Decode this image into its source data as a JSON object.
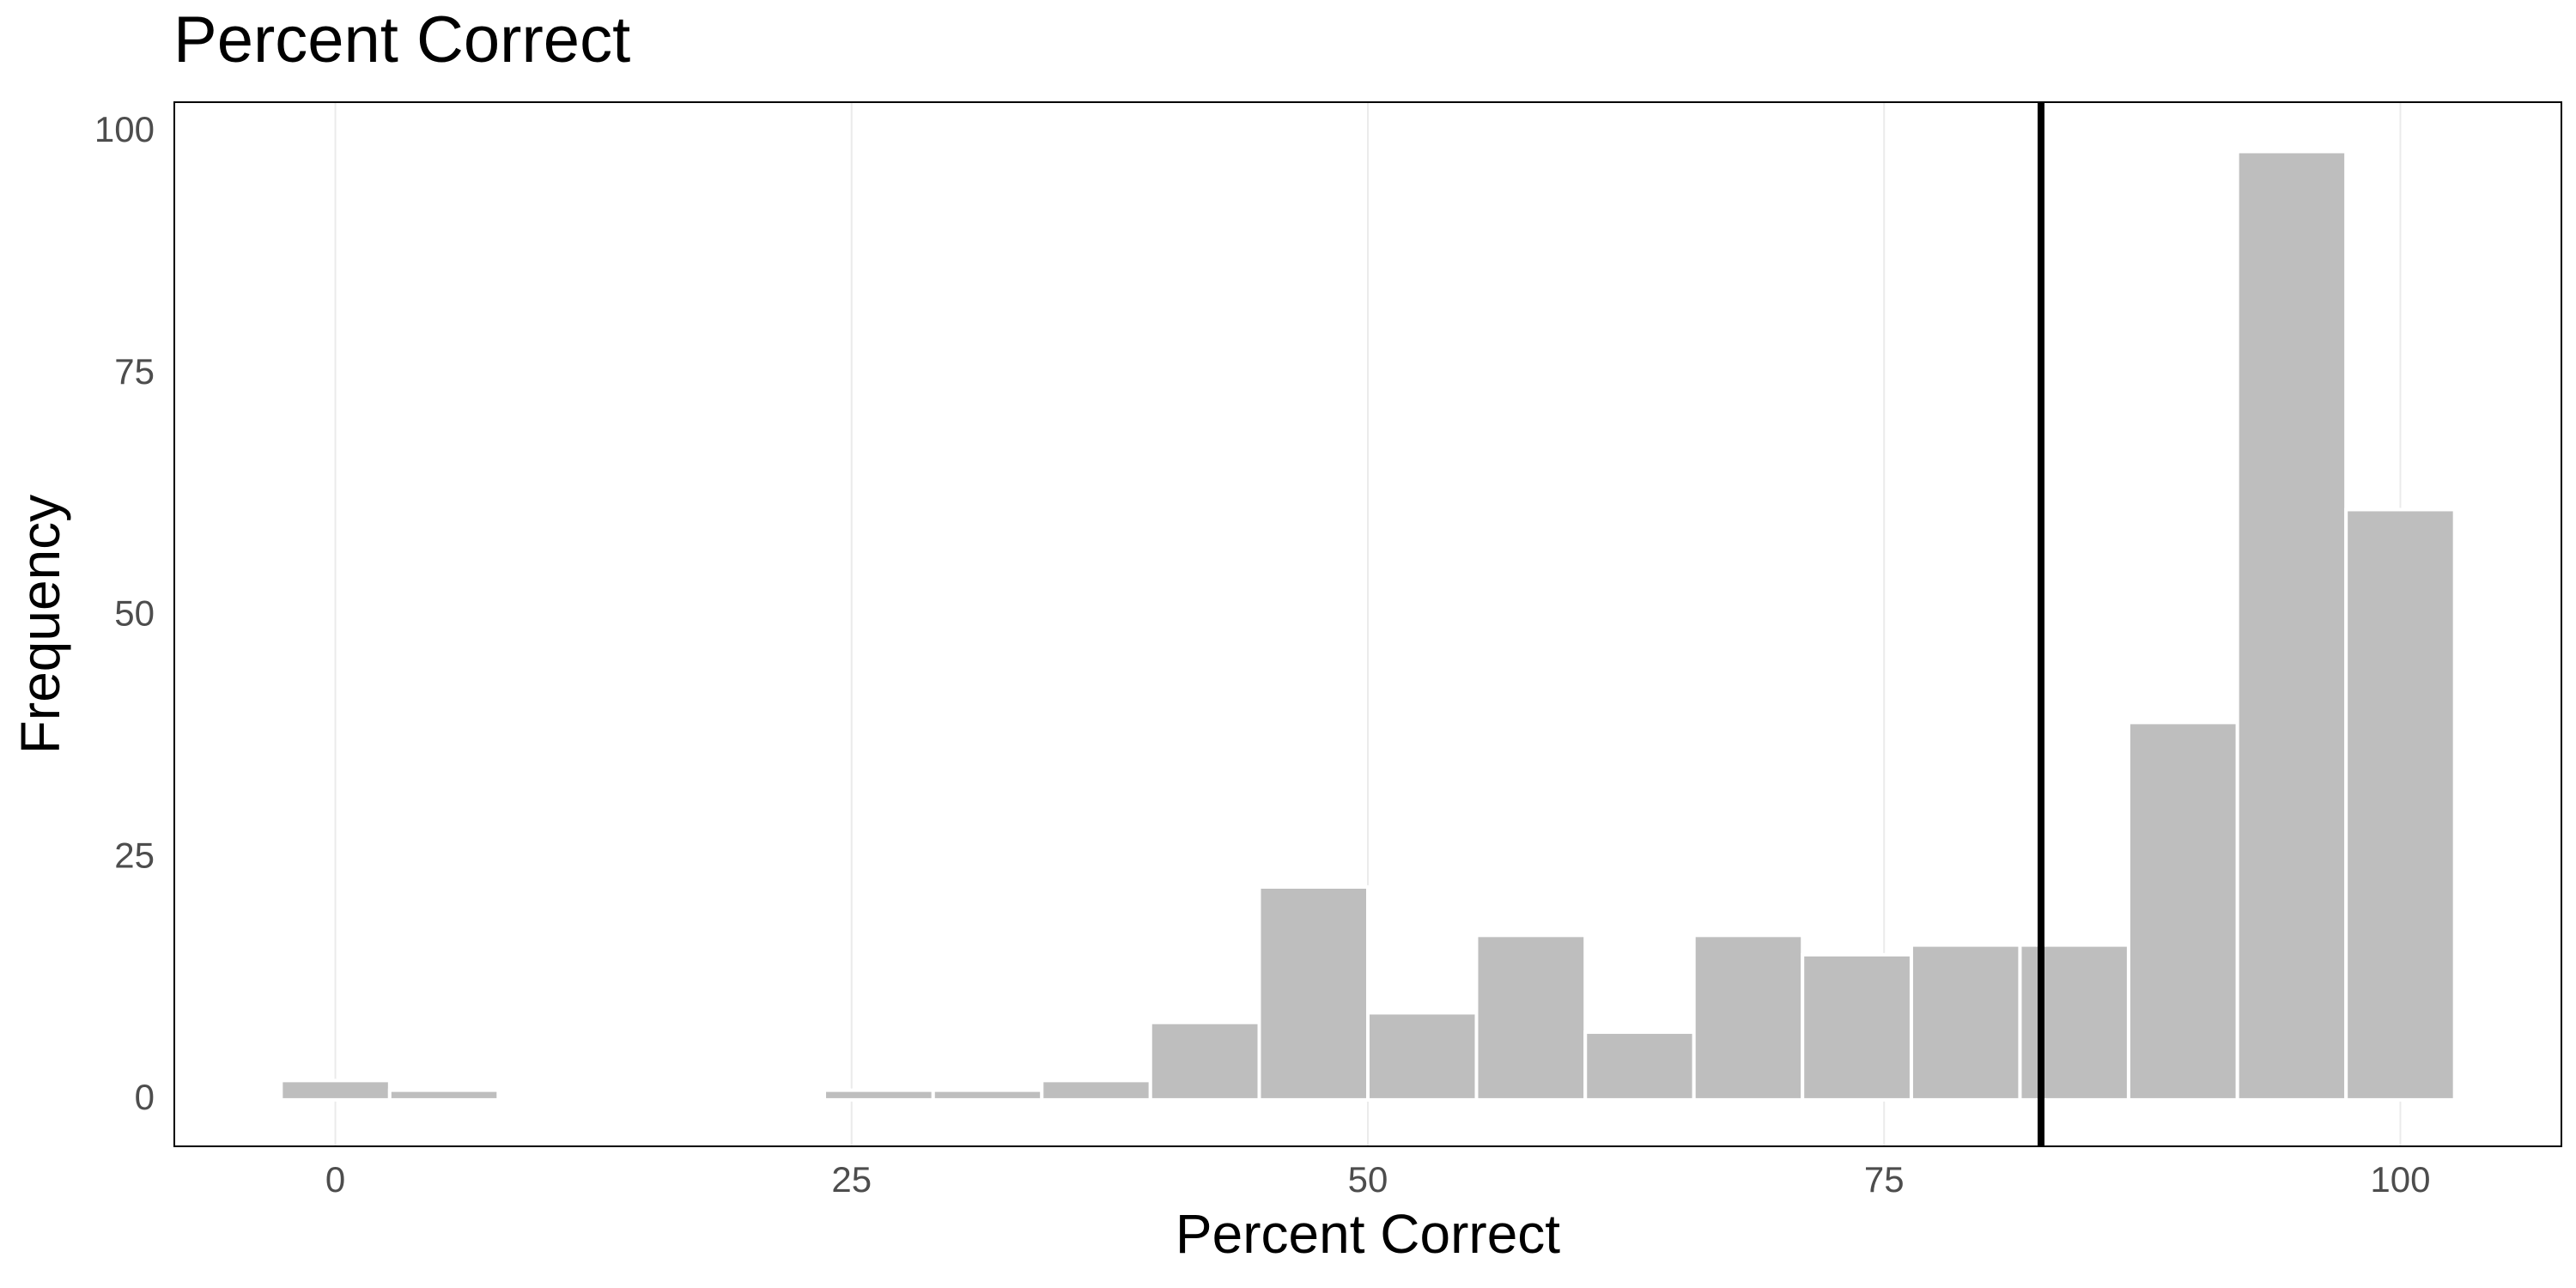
{
  "chart_data": {
    "type": "histogram",
    "title": "Percent Correct",
    "x_label": "Percent Correct",
    "y_label": "Frequency",
    "bins": [
      -2.63,
      2.63,
      7.89,
      13.16,
      18.42,
      23.68,
      28.95,
      34.21,
      39.47,
      44.74,
      50,
      55.26,
      60.53,
      65.79,
      71.05,
      76.32,
      81.58,
      86.84,
      92.11,
      97.37,
      102.63
    ],
    "counts": [
      2,
      1,
      0,
      0,
      0,
      1,
      1,
      2,
      8,
      22,
      9,
      17,
      7,
      17,
      15,
      16,
      16,
      39,
      98,
      61
    ],
    "color": "#bebebe",
    "vline": 82.6,
    "vline_color": "#000000",
    "xlim": [
      -7.8,
      107.8
    ],
    "xticks": [
      0,
      25,
      50,
      75,
      100
    ],
    "ylim": [
      -4.8,
      103.1
    ],
    "yticks": [
      0,
      25,
      50,
      75,
      100
    ],
    "grid": "x"
  }
}
